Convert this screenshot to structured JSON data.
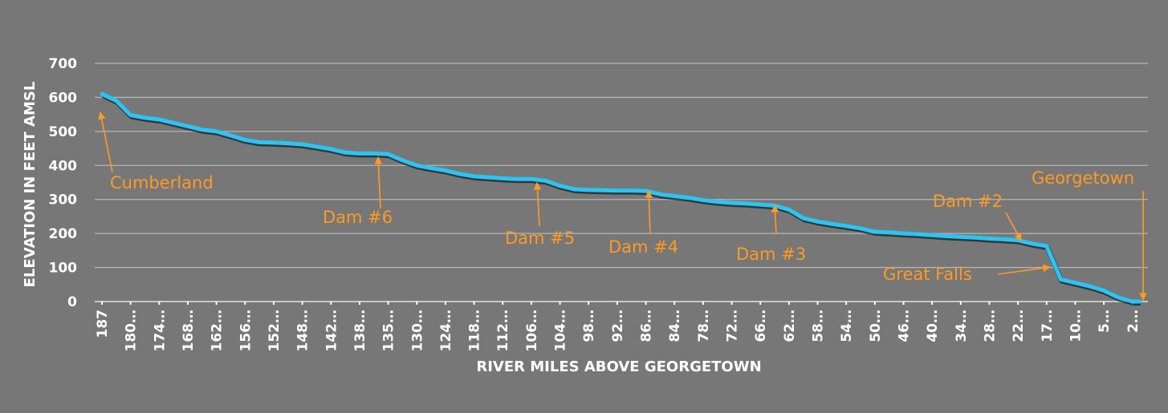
{
  "chart_data": {
    "type": "line",
    "title": "",
    "xlabel": "RIVER MILES ABOVE GEORGETOWN",
    "ylabel": "ELEVATION IN FEET AMSL",
    "ylim": [
      0,
      700
    ],
    "yticks": [
      0,
      100,
      200,
      300,
      400,
      500,
      600,
      700
    ],
    "grid": true,
    "legend": "none",
    "colors": {
      "background": "#777777",
      "line": "#29c5f6",
      "annotation": "#ff9a22",
      "grid": "#b5b5b5",
      "text": "#ffffff"
    },
    "x_tick_labels": [
      "187",
      "180…",
      "174…",
      "168…",
      "162…",
      "156…",
      "152…",
      "148…",
      "142…",
      "138…",
      "135…",
      "130…",
      "124…",
      "118…",
      "112…",
      "106…",
      "104…",
      "98…",
      "92…",
      "86…",
      "84…",
      "78…",
      "72…",
      "66…",
      "62…",
      "58…",
      "54…",
      "50…",
      "46…",
      "40…",
      "34…",
      "28…",
      "22…",
      "17…",
      "10…",
      "5…",
      "2…"
    ],
    "values": [
      610,
      590,
      548,
      540,
      535,
      525,
      515,
      505,
      500,
      488,
      475,
      468,
      467,
      465,
      462,
      455,
      448,
      438,
      435,
      435,
      433,
      415,
      400,
      392,
      385,
      375,
      368,
      365,
      362,
      360,
      360,
      355,
      340,
      330,
      328,
      327,
      326,
      326,
      325,
      315,
      310,
      305,
      298,
      293,
      290,
      288,
      285,
      282,
      270,
      245,
      235,
      228,
      222,
      215,
      205,
      203,
      200,
      198,
      195,
      192,
      190,
      188,
      185,
      183,
      180,
      170,
      163,
      65,
      55,
      45,
      32,
      12,
      0
    ],
    "annotations": [
      {
        "text": "Cumberland",
        "point_index": 0
      },
      {
        "text": "Dam #6",
        "point_index": 19
      },
      {
        "text": "Dam #5",
        "point_index": 30
      },
      {
        "text": "Dam #4",
        "point_index": 38
      },
      {
        "text": "Dam #3",
        "point_index": 47
      },
      {
        "text": "Dam #2",
        "point_index": 64
      },
      {
        "text": "Great Falls",
        "point_index": 66
      },
      {
        "text": "Georgetown",
        "point_index": 72
      }
    ]
  }
}
